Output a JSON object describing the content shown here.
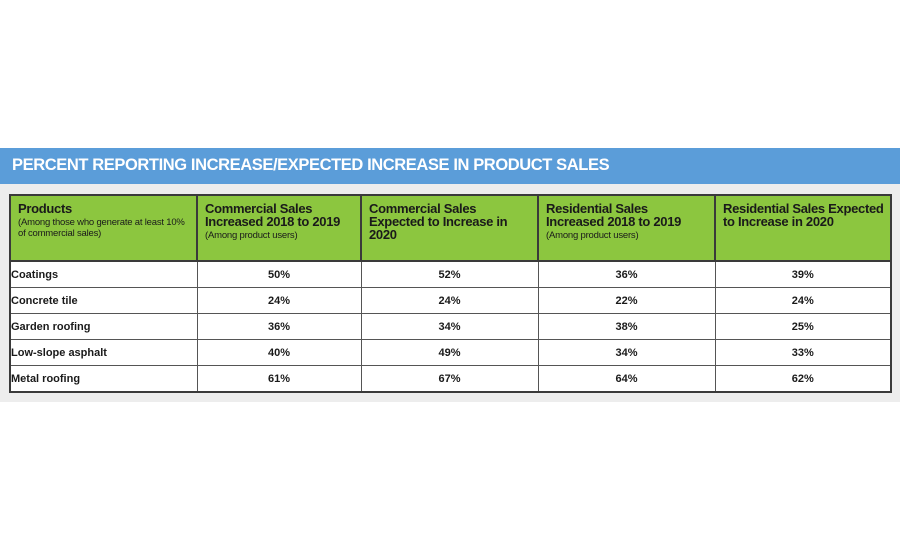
{
  "chart_data": {
    "type": "table",
    "title": "PERCENT REPORTING INCREASE/EXPECTED INCREASE IN PRODUCT SALES",
    "columns": [
      {
        "label": "Products",
        "sublabel": "(Among those who generate at least 10% of commercial sales)"
      },
      {
        "label": "Commercial Sales Increased 2018 to 2019",
        "sublabel": "(Among product users)"
      },
      {
        "label": "Commercial Sales Expected to Increase in 2020",
        "sublabel": ""
      },
      {
        "label": "Residential Sales Increased 2018 to 2019",
        "sublabel": "(Among product users)"
      },
      {
        "label": "Residential Sales Expected to Increase in 2020",
        "sublabel": ""
      }
    ],
    "rows": [
      {
        "product": "Coatings",
        "values": [
          "50%",
          "52%",
          "36%",
          "39%"
        ]
      },
      {
        "product": "Concrete tile",
        "values": [
          "24%",
          "24%",
          "22%",
          "24%"
        ]
      },
      {
        "product": "Garden roofing",
        "values": [
          "36%",
          "34%",
          "38%",
          "25%"
        ]
      },
      {
        "product": "Low-slope asphalt",
        "values": [
          "40%",
          "49%",
          "34%",
          "33%"
        ]
      },
      {
        "product": "Metal roofing",
        "values": [
          "61%",
          "67%",
          "64%",
          "62%"
        ]
      }
    ]
  },
  "colors": {
    "banner": "#5b9dd9",
    "header": "#8cc63f",
    "panel": "#ededed"
  }
}
